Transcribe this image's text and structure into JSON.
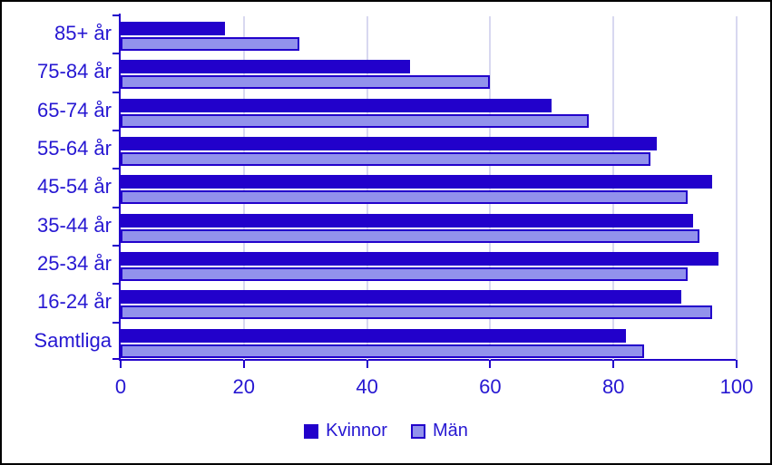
{
  "colors": {
    "kvinnor": "#2201CB",
    "man_fill": "#9292EC",
    "man_border": "#2201CB",
    "grid": "#D8D8F0",
    "axis": "#2201CB",
    "text": "#2617D2",
    "background": "#FFFFFF",
    "frame": "#000000"
  },
  "chart_data": {
    "type": "bar",
    "orientation": "horizontal",
    "title": "",
    "xlabel": "",
    "ylabel": "",
    "categories": [
      "85+ år",
      "75-84 år",
      "65-74 år",
      "55-64 år",
      "45-54 år",
      "35-44 år",
      "25-34 år",
      "16-24 år",
      "Samtliga"
    ],
    "series": [
      {
        "name": "Kvinnor",
        "values": [
          17,
          47,
          70,
          87,
          96,
          93,
          97,
          91,
          82
        ]
      },
      {
        "name": "Män",
        "values": [
          29,
          60,
          76,
          86,
          92,
          94,
          92,
          96,
          85
        ]
      }
    ],
    "xlim": [
      0,
      100
    ],
    "x_ticks": [
      0,
      20,
      40,
      60,
      80,
      100
    ],
    "grid": true,
    "legend_position": "bottom-center"
  }
}
